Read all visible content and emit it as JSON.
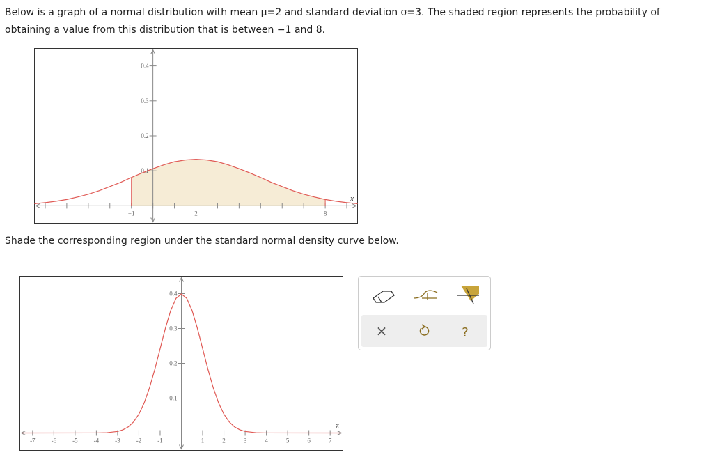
{
  "question": {
    "line1": "Below is a graph of a normal distribution with mean μ=2 and standard deviation σ=3. The shaded region represents the probability of",
    "line2": "obtaining a value from this distribution that is between −1 and 8."
  },
  "instruction": "Shade the corresponding region under the standard normal density curve below.",
  "chart_data": [
    {
      "type": "line",
      "x_label": "x",
      "color": "#e05a55",
      "shade_color": "#f6ecd6",
      "xlim": [
        -5.5,
        9.5
      ],
      "ylim": [
        -0.05,
        0.45
      ],
      "xticks": [
        {
          "value": -1,
          "label": "−1"
        },
        2,
        8
      ],
      "xminor": [
        -5,
        -4,
        -3,
        -2,
        0,
        1,
        3,
        4,
        5,
        6,
        7,
        9
      ],
      "yticks": [
        0.1,
        0.2,
        0.3,
        0.4
      ],
      "shade": [
        -1,
        8
      ],
      "mean": 2,
      "x": [
        -5.5,
        -5,
        -4.5,
        -4,
        -3.5,
        -3,
        -2.5,
        -2,
        -1.5,
        -1,
        -0.5,
        0,
        0.5,
        1,
        1.5,
        2,
        2.5,
        3,
        3.5,
        4,
        4.5,
        5,
        5.5,
        6,
        6.5,
        7,
        7.5,
        8,
        8.5,
        9,
        9.5
      ],
      "values": [
        0.006,
        0.009,
        0.013,
        0.018,
        0.025,
        0.033,
        0.043,
        0.055,
        0.067,
        0.081,
        0.094,
        0.106,
        0.117,
        0.126,
        0.131,
        0.133,
        0.131,
        0.126,
        0.117,
        0.106,
        0.094,
        0.081,
        0.067,
        0.055,
        0.043,
        0.033,
        0.025,
        0.018,
        0.013,
        0.009,
        0.006
      ]
    },
    {
      "type": "line",
      "x_label": "z",
      "color": "#e05a55",
      "xlim": [
        -7.6,
        7.6
      ],
      "ylim": [
        -0.05,
        0.45
      ],
      "xticks": [
        -7,
        -6,
        -5,
        -4,
        -3,
        -2,
        -1,
        1,
        2,
        3,
        4,
        5,
        6,
        7
      ],
      "yticks": [
        0.1,
        0.2,
        0.3,
        0.4
      ],
      "x": [
        -7.5,
        -4,
        -3.5,
        -3,
        -2.75,
        -2.5,
        -2.25,
        -2,
        -1.75,
        -1.5,
        -1.25,
        -1,
        -0.75,
        -0.5,
        -0.25,
        0,
        0.25,
        0.5,
        0.75,
        1,
        1.25,
        1.5,
        1.75,
        2,
        2.25,
        2.5,
        2.75,
        3,
        3.5,
        4,
        7.5
      ],
      "values": [
        0,
        0.0001,
        0.0009,
        0.0044,
        0.0091,
        0.0175,
        0.0317,
        0.054,
        0.0863,
        0.1295,
        0.1826,
        0.242,
        0.3011,
        0.3521,
        0.3867,
        0.3989,
        0.3867,
        0.3521,
        0.3011,
        0.242,
        0.1826,
        0.1295,
        0.0863,
        0.054,
        0.0317,
        0.0175,
        0.0091,
        0.0044,
        0.0009,
        0.0001,
        0
      ]
    }
  ],
  "toolbar": {
    "clear": "×",
    "help": "?"
  }
}
